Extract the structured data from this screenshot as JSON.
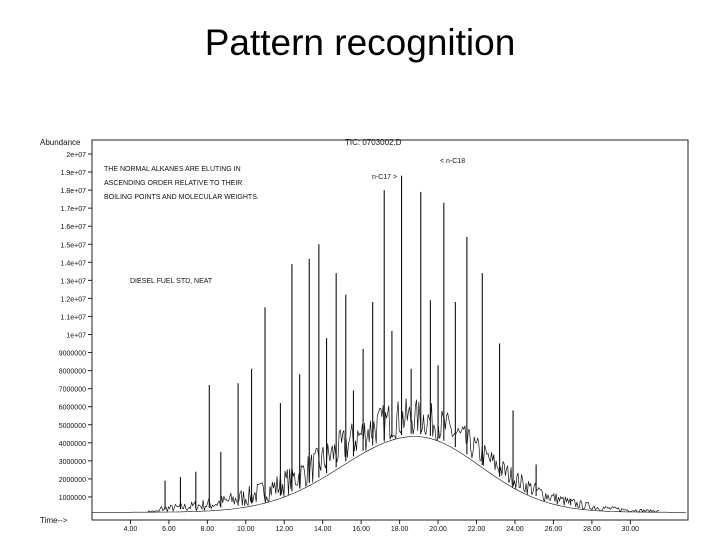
{
  "slide": {
    "title": "Pattern recognition"
  },
  "chart_data": {
    "type": "line",
    "ylabel": "Abundance",
    "xlabel": "Time-->",
    "file_label": "TIC: 0703002.D",
    "xlim": [
      2.0,
      33.0
    ],
    "ylim": [
      0,
      20000000
    ],
    "x_ticks": [
      4,
      6,
      8,
      10,
      12,
      14,
      16,
      18,
      20,
      22,
      24,
      26,
      28,
      30
    ],
    "x_tick_labels": [
      "4.00",
      "6.00",
      "8.00",
      "10.00",
      "12.00",
      "14.00",
      "16.00",
      "18.00",
      "20.00",
      "22.00",
      "24.00",
      "26.00",
      "28.00",
      "30.00"
    ],
    "y_ticks": [
      1000000,
      2000000,
      3000000,
      4000000,
      5000000,
      6000000,
      7000000,
      8000000,
      9000000,
      10000000,
      11000000,
      12000000,
      13000000,
      14000000,
      15000000,
      16000000,
      17000000,
      18000000,
      19000000,
      20000000
    ],
    "y_tick_labels": [
      "1000000",
      "2000000",
      "3000000",
      "4000000",
      "5000000",
      "6000000",
      "7000000",
      "8000000",
      "9000000",
      "1e+07",
      "1.1e+07",
      "1.2e+07",
      "1.3e+07",
      "1.4e+07",
      "1.5e+07",
      "1.6e+07",
      "1.7e+07",
      "1.8e+07",
      "1.9e+07",
      "2e+07"
    ],
    "grid": false,
    "annotations": {
      "note_lines": [
        "THE NORMAL ALKANES ARE ELUTING IN",
        "ASCENDING ORDER RELATIVE TO THEIR",
        "BOILING POINTS AND MOLECULAR WEIGHTS."
      ],
      "sample_label": "DIESEL FUEL STD, NEAT",
      "peak_labels": [
        "n-C17 >",
        "< n-C18"
      ]
    },
    "hump": {
      "center": 18.8,
      "height": 4200000,
      "sigma_left": 3.8,
      "sigma_right": 3.4
    },
    "series": [
      {
        "x": [
          5.8,
          6.6,
          7.4,
          8.1,
          8.7,
          9.6,
          10.3,
          11.0,
          11.8,
          12.4,
          12.8,
          13.3,
          13.8,
          14.2,
          14.7,
          15.2,
          15.6,
          16.1,
          16.6,
          17.2,
          17.6,
          18.1,
          18.6,
          19.1,
          19.6,
          20.0,
          20.3,
          20.9,
          21.5,
          22.3,
          23.2,
          23.9,
          25.1,
          26.9
        ],
        "y": [
          1900000,
          2100000,
          2400000,
          7200000,
          3500000,
          7300000,
          8100000,
          11500000,
          6200000,
          13900000,
          7800000,
          14200000,
          15000000,
          9800000,
          13400000,
          12200000,
          6900000,
          9200000,
          11800000,
          18000000,
          10200000,
          18800000,
          8100000,
          17900000,
          11900000,
          8300000,
          17300000,
          11800000,
          15400000,
          13400000,
          9500000,
          5800000,
          2800000,
          900000
        ]
      }
    ]
  }
}
